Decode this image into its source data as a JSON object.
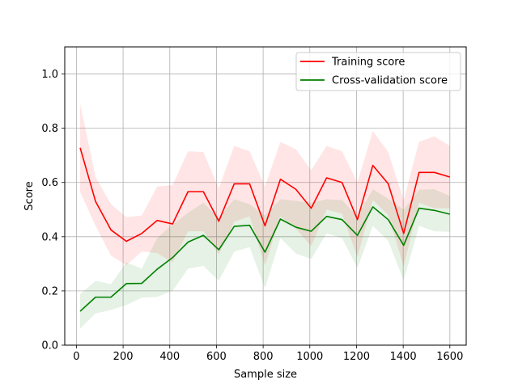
{
  "chart_data": {
    "type": "line",
    "title": "",
    "xlabel": "Sample size",
    "ylabel": "Score",
    "xlim": [
      -50,
      1670
    ],
    "ylim": [
      0.0,
      1.1
    ],
    "xticks": [
      0,
      200,
      400,
      600,
      800,
      1000,
      1200,
      1400,
      1600
    ],
    "xtick_labels": [
      "0",
      "200",
      "400",
      "600",
      "800",
      "1000",
      "1200",
      "1400",
      "1600"
    ],
    "yticks": [
      0.0,
      0.2,
      0.4,
      0.6,
      0.8,
      1.0
    ],
    "ytick_labels": [
      "0.0",
      "0.2",
      "0.4",
      "0.6",
      "0.8",
      "1.0"
    ],
    "grid": true,
    "legend_position": "top-right",
    "x": [
      16,
      82,
      148,
      214,
      280,
      346,
      412,
      478,
      544,
      610,
      676,
      742,
      808,
      874,
      940,
      1006,
      1072,
      1138,
      1204,
      1270,
      1336,
      1402,
      1468,
      1534,
      1600
    ],
    "series": [
      {
        "name": "Training score",
        "color": "#ff0000",
        "band_color": "#ff0000",
        "values": [
          0.728,
          0.53,
          0.425,
          0.383,
          0.412,
          0.46,
          0.447,
          0.566,
          0.566,
          0.457,
          0.595,
          0.595,
          0.44,
          0.612,
          0.575,
          0.505,
          0.617,
          0.6,
          0.463,
          0.663,
          0.595,
          0.412,
          0.637,
          0.637,
          0.62
        ],
        "band_upper": [
          0.89,
          0.62,
          0.52,
          0.472,
          0.478,
          0.585,
          0.59,
          0.715,
          0.712,
          0.578,
          0.735,
          0.715,
          0.585,
          0.75,
          0.722,
          0.645,
          0.735,
          0.715,
          0.6,
          0.79,
          0.712,
          0.535,
          0.75,
          0.77,
          0.735
        ],
        "band_lower": [
          0.565,
          0.44,
          0.33,
          0.295,
          0.345,
          0.34,
          0.305,
          0.42,
          0.42,
          0.335,
          0.455,
          0.475,
          0.295,
          0.475,
          0.43,
          0.365,
          0.5,
          0.485,
          0.325,
          0.535,
          0.48,
          0.29,
          0.525,
          0.505,
          0.505
        ]
      },
      {
        "name": "Cross-validation score",
        "color": "#008000",
        "band_color": "#008000",
        "values": [
          0.125,
          0.177,
          0.177,
          0.227,
          0.228,
          0.28,
          0.323,
          0.38,
          0.405,
          0.352,
          0.438,
          0.442,
          0.343,
          0.465,
          0.435,
          0.42,
          0.475,
          0.463,
          0.405,
          0.51,
          0.463,
          0.368,
          0.505,
          0.497,
          0.483
        ],
        "band_upper": [
          0.188,
          0.237,
          0.225,
          0.305,
          0.282,
          0.395,
          0.445,
          0.488,
          0.525,
          0.47,
          0.538,
          0.52,
          0.478,
          0.538,
          0.532,
          0.525,
          0.538,
          0.535,
          0.475,
          0.575,
          0.54,
          0.5,
          0.573,
          0.575,
          0.55
        ],
        "band_lower": [
          0.062,
          0.117,
          0.13,
          0.148,
          0.175,
          0.178,
          0.2,
          0.282,
          0.292,
          0.238,
          0.345,
          0.362,
          0.21,
          0.395,
          0.338,
          0.318,
          0.412,
          0.395,
          0.285,
          0.44,
          0.385,
          0.238,
          0.44,
          0.42,
          0.418
        ]
      }
    ]
  }
}
